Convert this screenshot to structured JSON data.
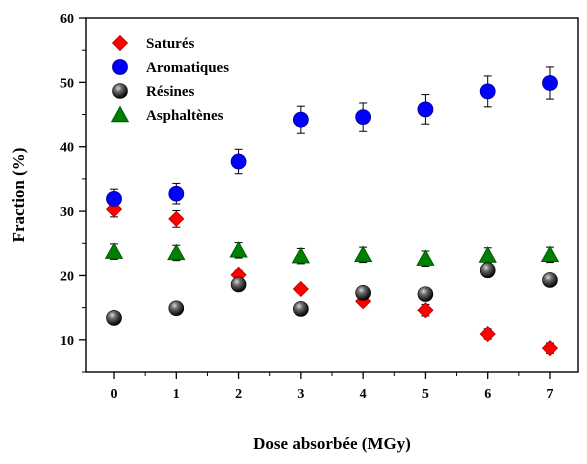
{
  "chart_data": {
    "type": "scatter",
    "title": "",
    "xlabel": "Dose absorbée (MGy)",
    "ylabel": "Fraction (%)",
    "xlim": [
      -0.45,
      7.45
    ],
    "ylim": [
      5,
      60
    ],
    "x": [
      0,
      1,
      2,
      3,
      4,
      5,
      6,
      7
    ],
    "x_ticks": [
      0,
      1,
      2,
      3,
      4,
      5,
      6,
      7
    ],
    "y_ticks": [
      10,
      20,
      30,
      40,
      50,
      60
    ],
    "grid": false,
    "legend_position": "top-left",
    "series": [
      {
        "name": "Saturés",
        "marker": "diamond",
        "color": "#ff0000",
        "values": [
          30.3,
          28.8,
          20.1,
          17.9,
          16.0,
          14.6,
          10.9,
          8.7
        ],
        "errors": [
          1.2,
          1.3,
          0.7,
          0.6,
          0.6,
          0.9,
          0.8,
          0.8
        ]
      },
      {
        "name": "Aromatiques",
        "marker": "circle",
        "color": "#0000ff",
        "values": [
          31.9,
          32.7,
          37.7,
          44.2,
          44.6,
          45.8,
          48.6,
          49.9
        ],
        "errors": [
          1.5,
          1.6,
          1.9,
          2.1,
          2.2,
          2.3,
          2.4,
          2.5
        ]
      },
      {
        "name": "Résines",
        "marker": "sphere",
        "color": "#111111",
        "values": [
          13.4,
          14.9,
          18.6,
          14.8,
          17.3,
          17.1,
          20.8,
          19.3
        ],
        "errors": [
          0,
          0,
          0,
          0,
          0,
          0,
          0,
          0
        ]
      },
      {
        "name": "Asphaltènes",
        "marker": "triangle",
        "color": "#008000",
        "values": [
          23.7,
          23.5,
          23.9,
          23.0,
          23.2,
          22.6,
          23.1,
          23.2
        ],
        "errors": [
          1.2,
          1.2,
          1.2,
          1.2,
          1.2,
          1.2,
          1.2,
          1.2
        ]
      }
    ]
  }
}
